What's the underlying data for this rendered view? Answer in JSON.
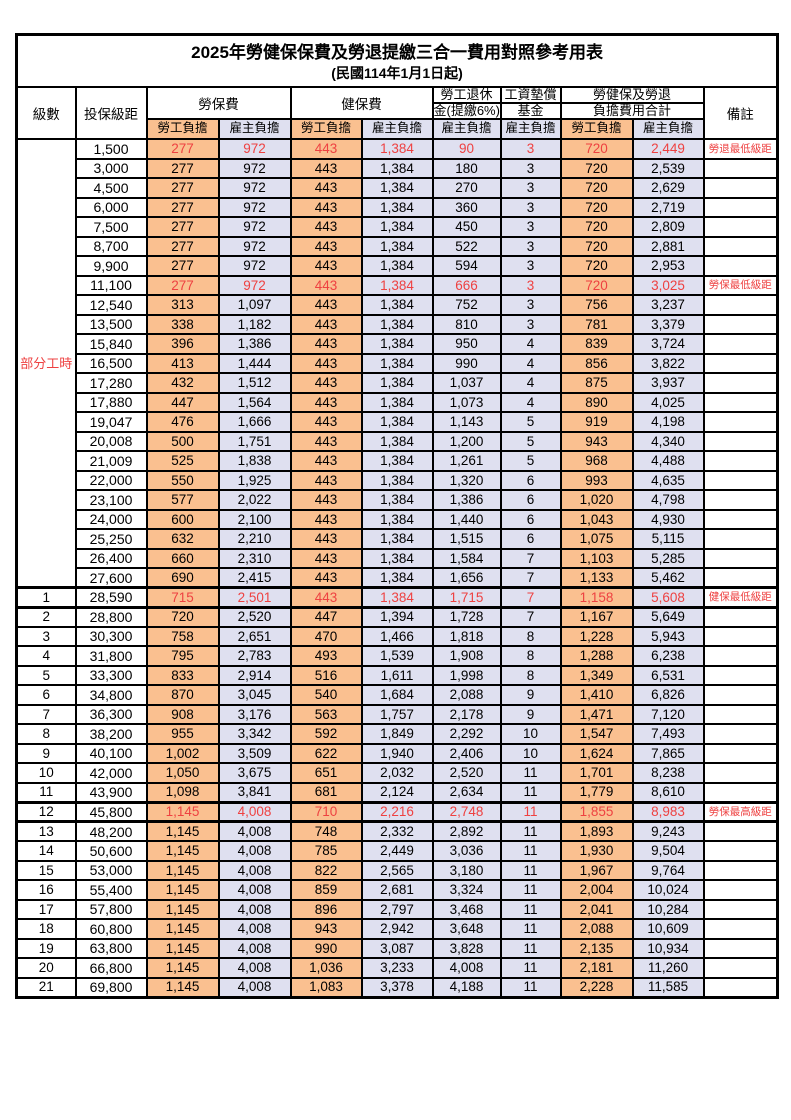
{
  "title": "2025年勞健保保費及勞退提繳三合一費用對照參考用表",
  "subtitle": "(民國114年1月1日起)",
  "header": {
    "level": "級數",
    "bracket": "投保級距",
    "labor_group": "勞保費",
    "health_group": "健保費",
    "pension_line1": "勞工退休",
    "pension_line2": "金(提繳6%)",
    "fund_line1": "工資墊償",
    "fund_line2": "基金",
    "total_line1": "勞健保及勞退",
    "total_line2": "負擔費用合計",
    "note": "備註",
    "sub_labels": [
      "勞工負擔",
      "雇主負擔",
      "勞工負擔",
      "雇主負擔",
      "雇主負擔",
      "雇主負擔",
      "勞工負擔",
      "雇主負擔"
    ]
  },
  "part_time_label": "部分工時",
  "colors": {
    "employee_bg": "#fac090",
    "employer_bg": "#dfe0f0",
    "red": "#ee4141"
  },
  "rows": [
    {
      "level": "",
      "bracket": "1,500",
      "cells": [
        "277",
        "972",
        "443",
        "1,384",
        "90",
        "3",
        "720",
        "2,449"
      ],
      "note": "勞退最低級距",
      "red": true,
      "thick": false
    },
    {
      "level": "",
      "bracket": "3,000",
      "cells": [
        "277",
        "972",
        "443",
        "1,384",
        "180",
        "3",
        "720",
        "2,539"
      ],
      "note": "",
      "red": false,
      "thick": false
    },
    {
      "level": "",
      "bracket": "4,500",
      "cells": [
        "277",
        "972",
        "443",
        "1,384",
        "270",
        "3",
        "720",
        "2,629"
      ],
      "note": "",
      "red": false,
      "thick": false
    },
    {
      "level": "",
      "bracket": "6,000",
      "cells": [
        "277",
        "972",
        "443",
        "1,384",
        "360",
        "3",
        "720",
        "2,719"
      ],
      "note": "",
      "red": false,
      "thick": false
    },
    {
      "level": "",
      "bracket": "7,500",
      "cells": [
        "277",
        "972",
        "443",
        "1,384",
        "450",
        "3",
        "720",
        "2,809"
      ],
      "note": "",
      "red": false,
      "thick": false
    },
    {
      "level": "",
      "bracket": "8,700",
      "cells": [
        "277",
        "972",
        "443",
        "1,384",
        "522",
        "3",
        "720",
        "2,881"
      ],
      "note": "",
      "red": false,
      "thick": false
    },
    {
      "level": "",
      "bracket": "9,900",
      "cells": [
        "277",
        "972",
        "443",
        "1,384",
        "594",
        "3",
        "720",
        "2,953"
      ],
      "note": "",
      "red": false,
      "thick": false
    },
    {
      "level": "",
      "bracket": "11,100",
      "cells": [
        "277",
        "972",
        "443",
        "1,384",
        "666",
        "3",
        "720",
        "3,025"
      ],
      "note": "勞保最低級距",
      "red": true,
      "thick": false
    },
    {
      "level": "",
      "bracket": "12,540",
      "cells": [
        "313",
        "1,097",
        "443",
        "1,384",
        "752",
        "3",
        "756",
        "3,237"
      ],
      "note": "",
      "red": false,
      "thick": false
    },
    {
      "level": "",
      "bracket": "13,500",
      "cells": [
        "338",
        "1,182",
        "443",
        "1,384",
        "810",
        "3",
        "781",
        "3,379"
      ],
      "note": "",
      "red": false,
      "thick": false
    },
    {
      "level": "",
      "bracket": "15,840",
      "cells": [
        "396",
        "1,386",
        "443",
        "1,384",
        "950",
        "4",
        "839",
        "3,724"
      ],
      "note": "",
      "red": false,
      "thick": false
    },
    {
      "level": "",
      "bracket": "16,500",
      "cells": [
        "413",
        "1,444",
        "443",
        "1,384",
        "990",
        "4",
        "856",
        "3,822"
      ],
      "note": "",
      "red": false,
      "thick": false
    },
    {
      "level": "",
      "bracket": "17,280",
      "cells": [
        "432",
        "1,512",
        "443",
        "1,384",
        "1,037",
        "4",
        "875",
        "3,937"
      ],
      "note": "",
      "red": false,
      "thick": false
    },
    {
      "level": "",
      "bracket": "17,880",
      "cells": [
        "447",
        "1,564",
        "443",
        "1,384",
        "1,073",
        "4",
        "890",
        "4,025"
      ],
      "note": "",
      "red": false,
      "thick": false
    },
    {
      "level": "",
      "bracket": "19,047",
      "cells": [
        "476",
        "1,666",
        "443",
        "1,384",
        "1,143",
        "5",
        "919",
        "4,198"
      ],
      "note": "",
      "red": false,
      "thick": false
    },
    {
      "level": "",
      "bracket": "20,008",
      "cells": [
        "500",
        "1,751",
        "443",
        "1,384",
        "1,200",
        "5",
        "943",
        "4,340"
      ],
      "note": "",
      "red": false,
      "thick": false
    },
    {
      "level": "",
      "bracket": "21,009",
      "cells": [
        "525",
        "1,838",
        "443",
        "1,384",
        "1,261",
        "5",
        "968",
        "4,488"
      ],
      "note": "",
      "red": false,
      "thick": false
    },
    {
      "level": "",
      "bracket": "22,000",
      "cells": [
        "550",
        "1,925",
        "443",
        "1,384",
        "1,320",
        "6",
        "993",
        "4,635"
      ],
      "note": "",
      "red": false,
      "thick": false
    },
    {
      "level": "",
      "bracket": "23,100",
      "cells": [
        "577",
        "2,022",
        "443",
        "1,384",
        "1,386",
        "6",
        "1,020",
        "4,798"
      ],
      "note": "",
      "red": false,
      "thick": false
    },
    {
      "level": "",
      "bracket": "24,000",
      "cells": [
        "600",
        "2,100",
        "443",
        "1,384",
        "1,440",
        "6",
        "1,043",
        "4,930"
      ],
      "note": "",
      "red": false,
      "thick": false
    },
    {
      "level": "",
      "bracket": "25,250",
      "cells": [
        "632",
        "2,210",
        "443",
        "1,384",
        "1,515",
        "6",
        "1,075",
        "5,115"
      ],
      "note": "",
      "red": false,
      "thick": false
    },
    {
      "level": "",
      "bracket": "26,400",
      "cells": [
        "660",
        "2,310",
        "443",
        "1,384",
        "1,584",
        "7",
        "1,103",
        "5,285"
      ],
      "note": "",
      "red": false,
      "thick": false
    },
    {
      "level": "",
      "bracket": "27,600",
      "cells": [
        "690",
        "2,415",
        "443",
        "1,384",
        "1,656",
        "7",
        "1,133",
        "5,462"
      ],
      "note": "",
      "red": false,
      "thick": false
    },
    {
      "level": "1",
      "bracket": "28,590",
      "cells": [
        "715",
        "2,501",
        "443",
        "1,384",
        "1,715",
        "7",
        "1,158",
        "5,608"
      ],
      "note": "健保最低級距",
      "red": true,
      "thick": true
    },
    {
      "level": "2",
      "bracket": "28,800",
      "cells": [
        "720",
        "2,520",
        "447",
        "1,394",
        "1,728",
        "7",
        "1,167",
        "5,649"
      ],
      "note": "",
      "red": false,
      "thick": false
    },
    {
      "level": "3",
      "bracket": "30,300",
      "cells": [
        "758",
        "2,651",
        "470",
        "1,466",
        "1,818",
        "8",
        "1,228",
        "5,943"
      ],
      "note": "",
      "red": false,
      "thick": false
    },
    {
      "level": "4",
      "bracket": "31,800",
      "cells": [
        "795",
        "2,783",
        "493",
        "1,539",
        "1,908",
        "8",
        "1,288",
        "6,238"
      ],
      "note": "",
      "red": false,
      "thick": false
    },
    {
      "level": "5",
      "bracket": "33,300",
      "cells": [
        "833",
        "2,914",
        "516",
        "1,611",
        "1,998",
        "8",
        "1,349",
        "6,531"
      ],
      "note": "",
      "red": false,
      "thick": false
    },
    {
      "level": "6",
      "bracket": "34,800",
      "cells": [
        "870",
        "3,045",
        "540",
        "1,684",
        "2,088",
        "9",
        "1,410",
        "6,826"
      ],
      "note": "",
      "red": false,
      "thick": false
    },
    {
      "level": "7",
      "bracket": "36,300",
      "cells": [
        "908",
        "3,176",
        "563",
        "1,757",
        "2,178",
        "9",
        "1,471",
        "7,120"
      ],
      "note": "",
      "red": false,
      "thick": false
    },
    {
      "level": "8",
      "bracket": "38,200",
      "cells": [
        "955",
        "3,342",
        "592",
        "1,849",
        "2,292",
        "10",
        "1,547",
        "7,493"
      ],
      "note": "",
      "red": false,
      "thick": false
    },
    {
      "level": "9",
      "bracket": "40,100",
      "cells": [
        "1,002",
        "3,509",
        "622",
        "1,940",
        "2,406",
        "10",
        "1,624",
        "7,865"
      ],
      "note": "",
      "red": false,
      "thick": false
    },
    {
      "level": "10",
      "bracket": "42,000",
      "cells": [
        "1,050",
        "3,675",
        "651",
        "2,032",
        "2,520",
        "11",
        "1,701",
        "8,238"
      ],
      "note": "",
      "red": false,
      "thick": false
    },
    {
      "level": "11",
      "bracket": "43,900",
      "cells": [
        "1,098",
        "3,841",
        "681",
        "2,124",
        "2,634",
        "11",
        "1,779",
        "8,610"
      ],
      "note": "",
      "red": false,
      "thick": false
    },
    {
      "level": "12",
      "bracket": "45,800",
      "cells": [
        "1,145",
        "4,008",
        "710",
        "2,216",
        "2,748",
        "11",
        "1,855",
        "8,983"
      ],
      "note": "勞保最高級距",
      "red": true,
      "thick": true
    },
    {
      "level": "13",
      "bracket": "48,200",
      "cells": [
        "1,145",
        "4,008",
        "748",
        "2,332",
        "2,892",
        "11",
        "1,893",
        "9,243"
      ],
      "note": "",
      "red": false,
      "thick": false
    },
    {
      "level": "14",
      "bracket": "50,600",
      "cells": [
        "1,145",
        "4,008",
        "785",
        "2,449",
        "3,036",
        "11",
        "1,930",
        "9,504"
      ],
      "note": "",
      "red": false,
      "thick": false
    },
    {
      "level": "15",
      "bracket": "53,000",
      "cells": [
        "1,145",
        "4,008",
        "822",
        "2,565",
        "3,180",
        "11",
        "1,967",
        "9,764"
      ],
      "note": "",
      "red": false,
      "thick": false
    },
    {
      "level": "16",
      "bracket": "55,400",
      "cells": [
        "1,145",
        "4,008",
        "859",
        "2,681",
        "3,324",
        "11",
        "2,004",
        "10,024"
      ],
      "note": "",
      "red": false,
      "thick": false
    },
    {
      "level": "17",
      "bracket": "57,800",
      "cells": [
        "1,145",
        "4,008",
        "896",
        "2,797",
        "3,468",
        "11",
        "2,041",
        "10,284"
      ],
      "note": "",
      "red": false,
      "thick": false
    },
    {
      "level": "18",
      "bracket": "60,800",
      "cells": [
        "1,145",
        "4,008",
        "943",
        "2,942",
        "3,648",
        "11",
        "2,088",
        "10,609"
      ],
      "note": "",
      "red": false,
      "thick": false
    },
    {
      "level": "19",
      "bracket": "63,800",
      "cells": [
        "1,145",
        "4,008",
        "990",
        "3,087",
        "3,828",
        "11",
        "2,135",
        "10,934"
      ],
      "note": "",
      "red": false,
      "thick": false
    },
    {
      "level": "20",
      "bracket": "66,800",
      "cells": [
        "1,145",
        "4,008",
        "1,036",
        "3,233",
        "4,008",
        "11",
        "2,181",
        "11,260"
      ],
      "note": "",
      "red": false,
      "thick": false
    },
    {
      "level": "21",
      "bracket": "69,800",
      "cells": [
        "1,145",
        "4,008",
        "1,083",
        "3,378",
        "4,188",
        "11",
        "2,228",
        "11,585"
      ],
      "note": "",
      "red": false,
      "thick": false
    }
  ]
}
